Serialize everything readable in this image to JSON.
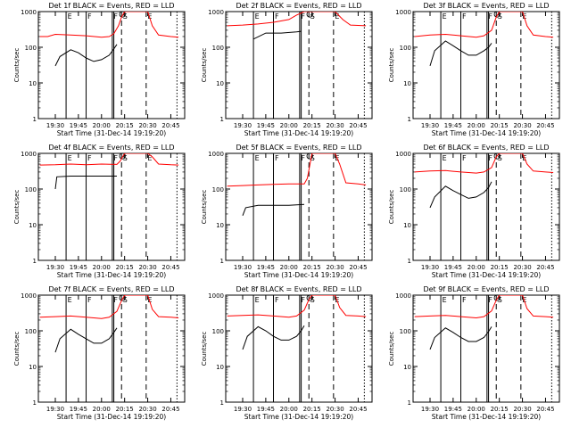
{
  "figure": {
    "x_axis_title": "Start Time (31-Dec-14 19:19:20)",
    "y_axis_title": "Counts/sec"
  },
  "chart_data": [
    {
      "type": "line",
      "title": "Det 1f BLACK = Events, RED = LLD",
      "x_ticks": [
        "19:30",
        "19:45",
        "20:00",
        "20:15",
        "20:30",
        "20:45"
      ],
      "ylim": [
        1,
        1000
      ],
      "yscale": "log",
      "y_ticks": [
        "1",
        "10",
        "100",
        "1000"
      ],
      "series": [
        {
          "name": "Events",
          "color": "#000000",
          "x": [
            "19:30",
            "19:33",
            "19:40",
            "19:45",
            "19:50",
            "19:55",
            "20:00",
            "20:05",
            "20:08",
            "20:10"
          ],
          "values": [
            30,
            55,
            85,
            70,
            50,
            40,
            45,
            60,
            90,
            120
          ]
        },
        {
          "name": "LLD",
          "color": "#ff0000",
          "x": [
            "19:20",
            "19:25",
            "19:30",
            "19:40",
            "19:50",
            "20:00",
            "20:05",
            "20:08",
            "20:11",
            "20:13",
            "20:15",
            "20:30",
            "20:33",
            "20:37",
            "20:45",
            "20:50"
          ],
          "values": [
            200,
            200,
            230,
            220,
            210,
            190,
            200,
            240,
            400,
            700,
            1000,
            1000,
            400,
            220,
            200,
            190
          ]
        }
      ],
      "markers": {
        "solid": [
          "19:37",
          "19:50",
          "20:07",
          "20:08"
        ],
        "dashed": [
          "20:13",
          "20:29"
        ],
        "dotted": [
          "20:49"
        ],
        "labels": [
          "E",
          "F",
          "F",
          "S",
          "E"
        ]
      }
    },
    {
      "type": "line",
      "title": "Det 2f BLACK = Events, RED = LLD",
      "x_ticks": [
        "19:30",
        "19:45",
        "20:00",
        "20:15",
        "20:30",
        "20:45"
      ],
      "ylim": [
        1,
        1000
      ],
      "yscale": "log",
      "y_ticks": [
        "1",
        "10",
        "100",
        "1000"
      ],
      "series": [
        {
          "name": "Events",
          "color": "#000000",
          "x": [
            "19:37",
            "19:45",
            "19:55",
            "20:05",
            "20:08"
          ],
          "values": [
            170,
            250,
            250,
            270,
            280
          ]
        },
        {
          "name": "LLD",
          "color": "#ff0000",
          "x": [
            "19:20",
            "19:30",
            "19:40",
            "19:50",
            "20:00",
            "20:05",
            "20:10",
            "20:13",
            "20:20",
            "20:30",
            "20:35",
            "20:40",
            "20:50"
          ],
          "values": [
            400,
            420,
            450,
            500,
            600,
            800,
            1000,
            1000,
            1000,
            1000,
            600,
            420,
            400
          ]
        }
      ],
      "markers": {
        "solid": [
          "19:37",
          "19:50",
          "20:07",
          "20:08"
        ],
        "dashed": [
          "20:13",
          "20:29"
        ],
        "dotted": [
          "20:49"
        ],
        "labels": [
          "E",
          "F",
          "F",
          "S",
          "E"
        ]
      }
    },
    {
      "type": "line",
      "title": "Det 3f BLACK = Events, RED = LLD",
      "x_ticks": [
        "19:30",
        "19:45",
        "20:00",
        "20:15",
        "20:30",
        "20:45"
      ],
      "ylim": [
        1,
        1000
      ],
      "yscale": "log",
      "y_ticks": [
        "1",
        "10",
        "100",
        "1000"
      ],
      "series": [
        {
          "name": "Events",
          "color": "#000000",
          "x": [
            "19:30",
            "19:33",
            "19:40",
            "19:45",
            "19:50",
            "19:55",
            "20:00",
            "20:05",
            "20:08",
            "20:10"
          ],
          "values": [
            30,
            80,
            150,
            110,
            80,
            60,
            60,
            80,
            100,
            130
          ]
        },
        {
          "name": "LLD",
          "color": "#ff0000",
          "x": [
            "19:20",
            "19:30",
            "19:40",
            "19:50",
            "20:00",
            "20:05",
            "20:10",
            "20:13",
            "20:15",
            "20:30",
            "20:33",
            "20:37",
            "20:45",
            "20:50"
          ],
          "values": [
            200,
            220,
            230,
            210,
            190,
            210,
            300,
            700,
            1000,
            1000,
            400,
            220,
            200,
            190
          ]
        }
      ],
      "markers": {
        "solid": [
          "19:37",
          "19:50",
          "20:07",
          "20:08"
        ],
        "dashed": [
          "20:13",
          "20:29"
        ],
        "dotted": [
          "20:49"
        ],
        "labels": [
          "E",
          "F",
          "F",
          "S",
          "E"
        ]
      }
    },
    {
      "type": "line",
      "title": "Det 4f BLACK = Events, RED = LLD",
      "x_ticks": [
        "19:30",
        "19:45",
        "20:00",
        "20:15",
        "20:30",
        "20:45"
      ],
      "ylim": [
        1,
        1000
      ],
      "yscale": "log",
      "y_ticks": [
        "1",
        "10",
        "100",
        "1000"
      ],
      "series": [
        {
          "name": "Events",
          "color": "#000000",
          "x": [
            "19:30",
            "19:31",
            "19:40",
            "19:50",
            "20:00",
            "20:10"
          ],
          "values": [
            100,
            220,
            230,
            230,
            230,
            230
          ]
        },
        {
          "name": "LLD",
          "color": "#ff0000",
          "x": [
            "19:20",
            "19:30",
            "19:40",
            "19:50",
            "20:00",
            "20:10",
            "20:12",
            "20:15",
            "20:30",
            "20:33",
            "20:37",
            "20:45",
            "20:50"
          ],
          "values": [
            470,
            480,
            500,
            480,
            500,
            490,
            600,
            1000,
            1000,
            800,
            500,
            480,
            470
          ]
        }
      ],
      "markers": {
        "solid": [
          "19:37",
          "19:50",
          "20:07",
          "20:08"
        ],
        "dashed": [
          "20:13",
          "20:29"
        ],
        "dotted": [
          "20:49"
        ],
        "labels": [
          "E",
          "F",
          "F",
          "S",
          "E"
        ]
      }
    },
    {
      "type": "line",
      "title": "Det 5f BLACK = Events, RED = LLD",
      "x_ticks": [
        "19:30",
        "19:45",
        "20:00",
        "20:15",
        "20:30",
        "20:45"
      ],
      "ylim": [
        1,
        1000
      ],
      "yscale": "log",
      "y_ticks": [
        "1",
        "10",
        "100",
        "1000"
      ],
      "series": [
        {
          "name": "Events",
          "color": "#000000",
          "x": [
            "19:30",
            "19:32",
            "19:40",
            "19:50",
            "20:00",
            "20:10"
          ],
          "values": [
            18,
            30,
            35,
            35,
            35,
            37
          ]
        },
        {
          "name": "LLD",
          "color": "#ff0000",
          "x": [
            "19:20",
            "19:30",
            "19:40",
            "19:50",
            "20:00",
            "20:10",
            "20:12",
            "20:15",
            "20:30",
            "20:33",
            "20:37",
            "20:45",
            "20:50"
          ],
          "values": [
            120,
            125,
            130,
            135,
            140,
            140,
            200,
            1000,
            1000,
            500,
            150,
            140,
            130
          ]
        }
      ],
      "markers": {
        "solid": [
          "19:37",
          "19:50",
          "20:07",
          "20:08"
        ],
        "dashed": [
          "20:13",
          "20:29"
        ],
        "dotted": [
          "20:49"
        ],
        "labels": [
          "E",
          "F",
          "F",
          "S",
          "E"
        ]
      }
    },
    {
      "type": "line",
      "title": "Det 6f BLACK = Events, RED = LLD",
      "x_ticks": [
        "19:30",
        "19:45",
        "20:00",
        "20:15",
        "20:30",
        "20:45"
      ],
      "ylim": [
        1,
        1000
      ],
      "yscale": "log",
      "y_ticks": [
        "1",
        "10",
        "100",
        "1000"
      ],
      "series": [
        {
          "name": "Events",
          "color": "#000000",
          "x": [
            "19:30",
            "19:33",
            "19:40",
            "19:45",
            "19:50",
            "19:55",
            "20:00",
            "20:05",
            "20:08",
            "20:10"
          ],
          "values": [
            30,
            60,
            120,
            90,
            70,
            55,
            60,
            80,
            110,
            160
          ]
        },
        {
          "name": "LLD",
          "color": "#ff0000",
          "x": [
            "19:20",
            "19:30",
            "19:40",
            "19:50",
            "20:00",
            "20:05",
            "20:10",
            "20:13",
            "20:15",
            "20:30",
            "20:33",
            "20:37",
            "20:45",
            "20:50"
          ],
          "values": [
            300,
            320,
            330,
            300,
            280,
            300,
            400,
            800,
            1000,
            1000,
            500,
            320,
            300,
            290
          ]
        }
      ],
      "markers": {
        "solid": [
          "19:37",
          "19:50",
          "20:07",
          "20:08"
        ],
        "dashed": [
          "20:13",
          "20:29"
        ],
        "dotted": [
          "20:49"
        ],
        "labels": [
          "E",
          "F",
          "F",
          "S",
          "E"
        ]
      }
    },
    {
      "type": "line",
      "title": "Det 7f BLACK = Events, RED = LLD",
      "x_ticks": [
        "19:30",
        "19:45",
        "20:00",
        "20:15",
        "20:30",
        "20:45"
      ],
      "ylim": [
        1,
        1000
      ],
      "yscale": "log",
      "y_ticks": [
        "1",
        "10",
        "100",
        "1000"
      ],
      "series": [
        {
          "name": "Events",
          "color": "#000000",
          "x": [
            "19:30",
            "19:33",
            "19:40",
            "19:45",
            "19:50",
            "19:55",
            "20:00",
            "20:05",
            "20:08",
            "20:10"
          ],
          "values": [
            25,
            60,
            110,
            80,
            60,
            45,
            45,
            60,
            90,
            120
          ]
        },
        {
          "name": "LLD",
          "color": "#ff0000",
          "x": [
            "19:20",
            "19:30",
            "19:40",
            "19:50",
            "20:00",
            "20:05",
            "20:10",
            "20:13",
            "20:15",
            "20:30",
            "20:33",
            "20:37",
            "20:45",
            "20:50"
          ],
          "values": [
            240,
            250,
            260,
            240,
            220,
            240,
            350,
            700,
            1000,
            1000,
            400,
            250,
            240,
            230
          ]
        }
      ],
      "markers": {
        "solid": [
          "19:37",
          "19:50",
          "20:07",
          "20:08"
        ],
        "dashed": [
          "20:13",
          "20:29"
        ],
        "dotted": [
          "20:49"
        ],
        "labels": [
          "E",
          "F",
          "F",
          "S",
          "E"
        ]
      }
    },
    {
      "type": "line",
      "title": "Det 8f BLACK = Events, RED = LLD",
      "x_ticks": [
        "19:30",
        "19:45",
        "20:00",
        "20:15",
        "20:30",
        "20:45"
      ],
      "ylim": [
        1,
        1000
      ],
      "yscale": "log",
      "y_ticks": [
        "1",
        "10",
        "100",
        "1000"
      ],
      "series": [
        {
          "name": "Events",
          "color": "#000000",
          "x": [
            "19:30",
            "19:33",
            "19:40",
            "19:45",
            "19:50",
            "19:55",
            "20:00",
            "20:05",
            "20:08",
            "20:10"
          ],
          "values": [
            30,
            70,
            130,
            100,
            70,
            55,
            55,
            70,
            100,
            140
          ]
        },
        {
          "name": "LLD",
          "color": "#ff0000",
          "x": [
            "19:20",
            "19:30",
            "19:40",
            "19:50",
            "20:00",
            "20:05",
            "20:10",
            "20:13",
            "20:15",
            "20:30",
            "20:33",
            "20:37",
            "20:45",
            "20:50"
          ],
          "values": [
            260,
            270,
            280,
            260,
            240,
            260,
            380,
            750,
            1000,
            1000,
            450,
            270,
            260,
            250
          ]
        }
      ],
      "markers": {
        "solid": [
          "19:37",
          "19:50",
          "20:07",
          "20:08"
        ],
        "dashed": [
          "20:13",
          "20:29"
        ],
        "dotted": [
          "20:49"
        ],
        "labels": [
          "E",
          "F",
          "F",
          "S",
          "E"
        ]
      }
    },
    {
      "type": "line",
      "title": "Det 9f BLACK = Events, RED = LLD",
      "x_ticks": [
        "19:30",
        "19:45",
        "20:00",
        "20:15",
        "20:30",
        "20:45"
      ],
      "ylim": [
        1,
        1000
      ],
      "yscale": "log",
      "y_ticks": [
        "1",
        "10",
        "100",
        "1000"
      ],
      "series": [
        {
          "name": "Events",
          "color": "#000000",
          "x": [
            "19:30",
            "19:33",
            "19:40",
            "19:45",
            "19:50",
            "19:55",
            "20:00",
            "20:05",
            "20:08",
            "20:10"
          ],
          "values": [
            30,
            65,
            120,
            90,
            65,
            50,
            50,
            65,
            95,
            130
          ]
        },
        {
          "name": "LLD",
          "color": "#ff0000",
          "x": [
            "19:20",
            "19:30",
            "19:40",
            "19:50",
            "20:00",
            "20:05",
            "20:10",
            "20:13",
            "20:15",
            "20:30",
            "20:33",
            "20:37",
            "20:45",
            "20:50"
          ],
          "values": [
            250,
            260,
            270,
            250,
            230,
            250,
            360,
            720,
            1000,
            1000,
            420,
            260,
            250,
            240
          ]
        }
      ],
      "markers": {
        "solid": [
          "19:37",
          "19:50",
          "20:07",
          "20:08"
        ],
        "dashed": [
          "20:13",
          "20:29"
        ],
        "dotted": [
          "20:49"
        ],
        "labels": [
          "E",
          "F",
          "F",
          "S",
          "E"
        ]
      }
    }
  ]
}
